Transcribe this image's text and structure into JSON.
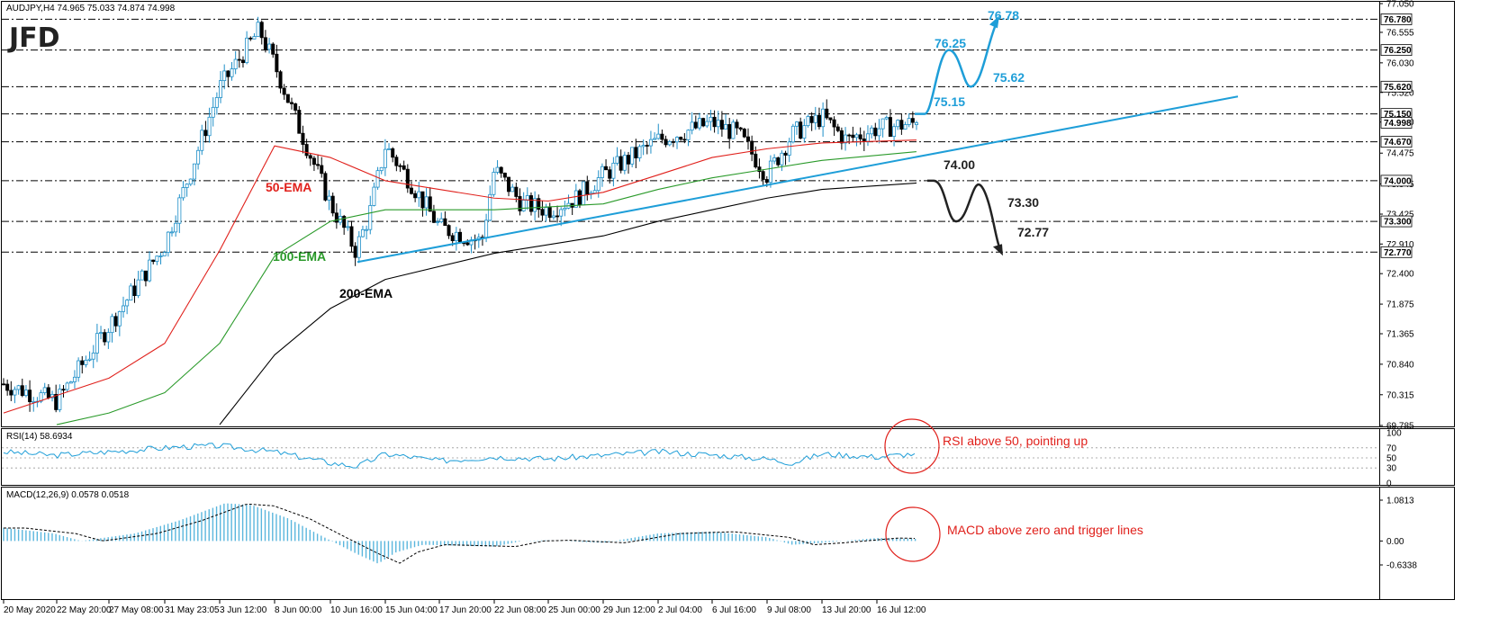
{
  "logo": "JFD",
  "panels": {
    "price": {
      "header": "AUDJPY,H4  74.965 75.033 74.874 74.998"
    },
    "rsi": {
      "header": "RSI(14) 58.6934",
      "levels": [
        "100",
        "70",
        "50",
        "30",
        "0"
      ]
    },
    "macd": {
      "header": "MACD(12,26,9) 0.0578 0.0518",
      "levels": [
        "1.0813",
        "0.00",
        "-0.6338"
      ]
    }
  },
  "price_axis_ticks": [
    "77.050",
    "76.555",
    "76.030",
    "75.520",
    "75.010",
    "74.475",
    "73.945",
    "73.425",
    "72.910",
    "72.400",
    "71.875",
    "71.365",
    "70.840",
    "70.315",
    "69.785"
  ],
  "highlighted_levels": [
    "76.780",
    "76.250",
    "75.620",
    "75.150",
    "74.998",
    "74.670",
    "74.000",
    "73.300",
    "72.770"
  ],
  "x_axis_labels": [
    "20 May 2020",
    "22 May 20:00",
    "27 May 08:00",
    "31 May 23:05",
    "3 Jun 12:00",
    "8 Jun 00:00",
    "10 Jun 16:00",
    "15 Jun 04:00",
    "17 Jun 20:00",
    "22 Jun 08:00",
    "25 Jun 00:00",
    "29 Jun 12:00",
    "2 Jul 04:00",
    "6 Jul 16:00",
    "9 Jul 08:00",
    "13 Jul 20:00",
    "16 Jul 12:00"
  ],
  "annotations": {
    "ema50": "50-EMA",
    "ema100": "100-EMA",
    "ema200": "200-EMA",
    "bull_path": [
      "75.15",
      "76.25",
      "75.62",
      "76.78"
    ],
    "bear_path": [
      "74.00",
      "73.30",
      "72.77"
    ],
    "rsi_note": "RSI above 50, pointing up",
    "macd_note": "MACD above zero and trigger lines"
  },
  "colors": {
    "bull_candle": "#1e8fc8",
    "bear_candle": "#000000",
    "ema50": "#e0201b",
    "ema100": "#2a9a2a",
    "ema200": "#000000",
    "trendline": "#1e9ed8",
    "bull_path": "#1e9ed8",
    "bear_path": "#222222",
    "rsi_line": "#1e9ed8",
    "macd_hist": "#5ab6dd",
    "note_red": "#e0201b"
  },
  "chart_data": {
    "type": "candlestick",
    "symbol": "AUDJPY",
    "timeframe": "H4",
    "ylim": [
      69.785,
      77.05
    ],
    "ohlc_last": {
      "open": 74.965,
      "high": 75.033,
      "low": 74.874,
      "close": 74.998
    },
    "price_anchors": [
      {
        "x": "20 May 2020",
        "close": 70.5
      },
      {
        "x": "22 May 20:00",
        "close": 70.2
      },
      {
        "x": "27 May 08:00",
        "close": 71.5
      },
      {
        "x": "31 May 23:05",
        "close": 72.9
      },
      {
        "x": "3 Jun 12:00",
        "close": 75.6
      },
      {
        "x": "4 Jun",
        "close": 76.6
      },
      {
        "x": "8 Jun 00:00",
        "close": 76.0
      },
      {
        "x": "9 Jun",
        "close": 75.0
      },
      {
        "x": "10 Jun 16:00",
        "close": 73.6
      },
      {
        "x": "11 Jun",
        "close": 72.8
      },
      {
        "x": "12 Jun",
        "close": 73.4
      },
      {
        "x": "15 Jun 04:00",
        "close": 74.6
      },
      {
        "x": "16 Jun",
        "close": 74.0
      },
      {
        "x": "17 Jun 20:00",
        "close": 73.2
      },
      {
        "x": "19 Jun",
        "close": 72.95
      },
      {
        "x": "22 Jun 08:00",
        "close": 74.2
      },
      {
        "x": "24 Jun",
        "close": 73.6
      },
      {
        "x": "25 Jun 00:00",
        "close": 73.5
      },
      {
        "x": "26 Jun",
        "close": 73.7
      },
      {
        "x": "29 Jun 12:00",
        "close": 74.1
      },
      {
        "x": "2 Jul 04:00",
        "close": 74.7
      },
      {
        "x": "6 Jul 16:00",
        "close": 75.0
      },
      {
        "x": "8 Jul",
        "close": 74.8
      },
      {
        "x": "9 Jul 08:00",
        "close": 74.1
      },
      {
        "x": "10 Jul",
        "close": 74.8
      },
      {
        "x": "13 Jul 20:00",
        "close": 75.1
      },
      {
        "x": "14 Jul",
        "close": 74.7
      },
      {
        "x": "16 Jul 12:00",
        "close": 74.9
      },
      {
        "x": "17 Jul",
        "close": 74.998
      }
    ],
    "ema50_anchors": [
      {
        "x": "20 May 2020",
        "y": 70.0
      },
      {
        "x": "27 May 08:00",
        "y": 70.6
      },
      {
        "x": "31 May 23:05",
        "y": 71.2
      },
      {
        "x": "3 Jun 12:00",
        "y": 72.8
      },
      {
        "x": "8 Jun 00:00",
        "y": 74.6
      },
      {
        "x": "10 Jun 16:00",
        "y": 74.4
      },
      {
        "x": "15 Jun 04:00",
        "y": 74.0
      },
      {
        "x": "17 Jun 20:00",
        "y": 73.85
      },
      {
        "x": "22 Jun 08:00",
        "y": 73.7
      },
      {
        "x": "25 Jun 00:00",
        "y": 73.65
      },
      {
        "x": "29 Jun 12:00",
        "y": 73.8
      },
      {
        "x": "2 Jul 04:00",
        "y": 74.1
      },
      {
        "x": "6 Jul 16:00",
        "y": 74.4
      },
      {
        "x": "9 Jul 08:00",
        "y": 74.55
      },
      {
        "x": "13 Jul 20:00",
        "y": 74.65
      },
      {
        "x": "17 Jul",
        "y": 74.7
      }
    ],
    "ema100_anchors": [
      {
        "x": "22 May 20:00",
        "y": 69.8
      },
      {
        "x": "27 May 08:00",
        "y": 70.0
      },
      {
        "x": "31 May 23:05",
        "y": 70.35
      },
      {
        "x": "3 Jun 12:00",
        "y": 71.2
      },
      {
        "x": "8 Jun 00:00",
        "y": 72.7
      },
      {
        "x": "10 Jun 16:00",
        "y": 73.3
      },
      {
        "x": "15 Jun 04:00",
        "y": 73.5
      },
      {
        "x": "22 Jun 08:00",
        "y": 73.5
      },
      {
        "x": "29 Jun 12:00",
        "y": 73.6
      },
      {
        "x": "2 Jul 04:00",
        "y": 73.85
      },
      {
        "x": "6 Jul 16:00",
        "y": 74.05
      },
      {
        "x": "9 Jul 08:00",
        "y": 74.2
      },
      {
        "x": "13 Jul 20:00",
        "y": 74.35
      },
      {
        "x": "17 Jul",
        "y": 74.5
      }
    ],
    "ema200_anchors": [
      {
        "x": "3 Jun 12:00",
        "y": 69.8
      },
      {
        "x": "8 Jun 00:00",
        "y": 71.0
      },
      {
        "x": "10 Jun 16:00",
        "y": 71.8
      },
      {
        "x": "15 Jun 04:00",
        "y": 72.3
      },
      {
        "x": "22 Jun 08:00",
        "y": 72.75
      },
      {
        "x": "29 Jun 12:00",
        "y": 73.05
      },
      {
        "x": "2 Jul 04:00",
        "y": 73.3
      },
      {
        "x": "6 Jul 16:00",
        "y": 73.5
      },
      {
        "x": "9 Jul 08:00",
        "y": 73.7
      },
      {
        "x": "13 Jul 20:00",
        "y": 73.85
      },
      {
        "x": "17 Jul",
        "y": 73.96
      }
    ],
    "rsi": {
      "ylim": [
        0,
        100
      ],
      "levels": [
        70,
        50,
        30
      ],
      "last": 58.6934
    },
    "macd": {
      "ylim": [
        -0.6338,
        1.0813
      ],
      "main_last": 0.0578,
      "signal_last": 0.0518
    },
    "scenario_bull": [
      75.15,
      76.25,
      75.62,
      76.78
    ],
    "scenario_bear": [
      74.0,
      73.3,
      72.77
    ]
  }
}
